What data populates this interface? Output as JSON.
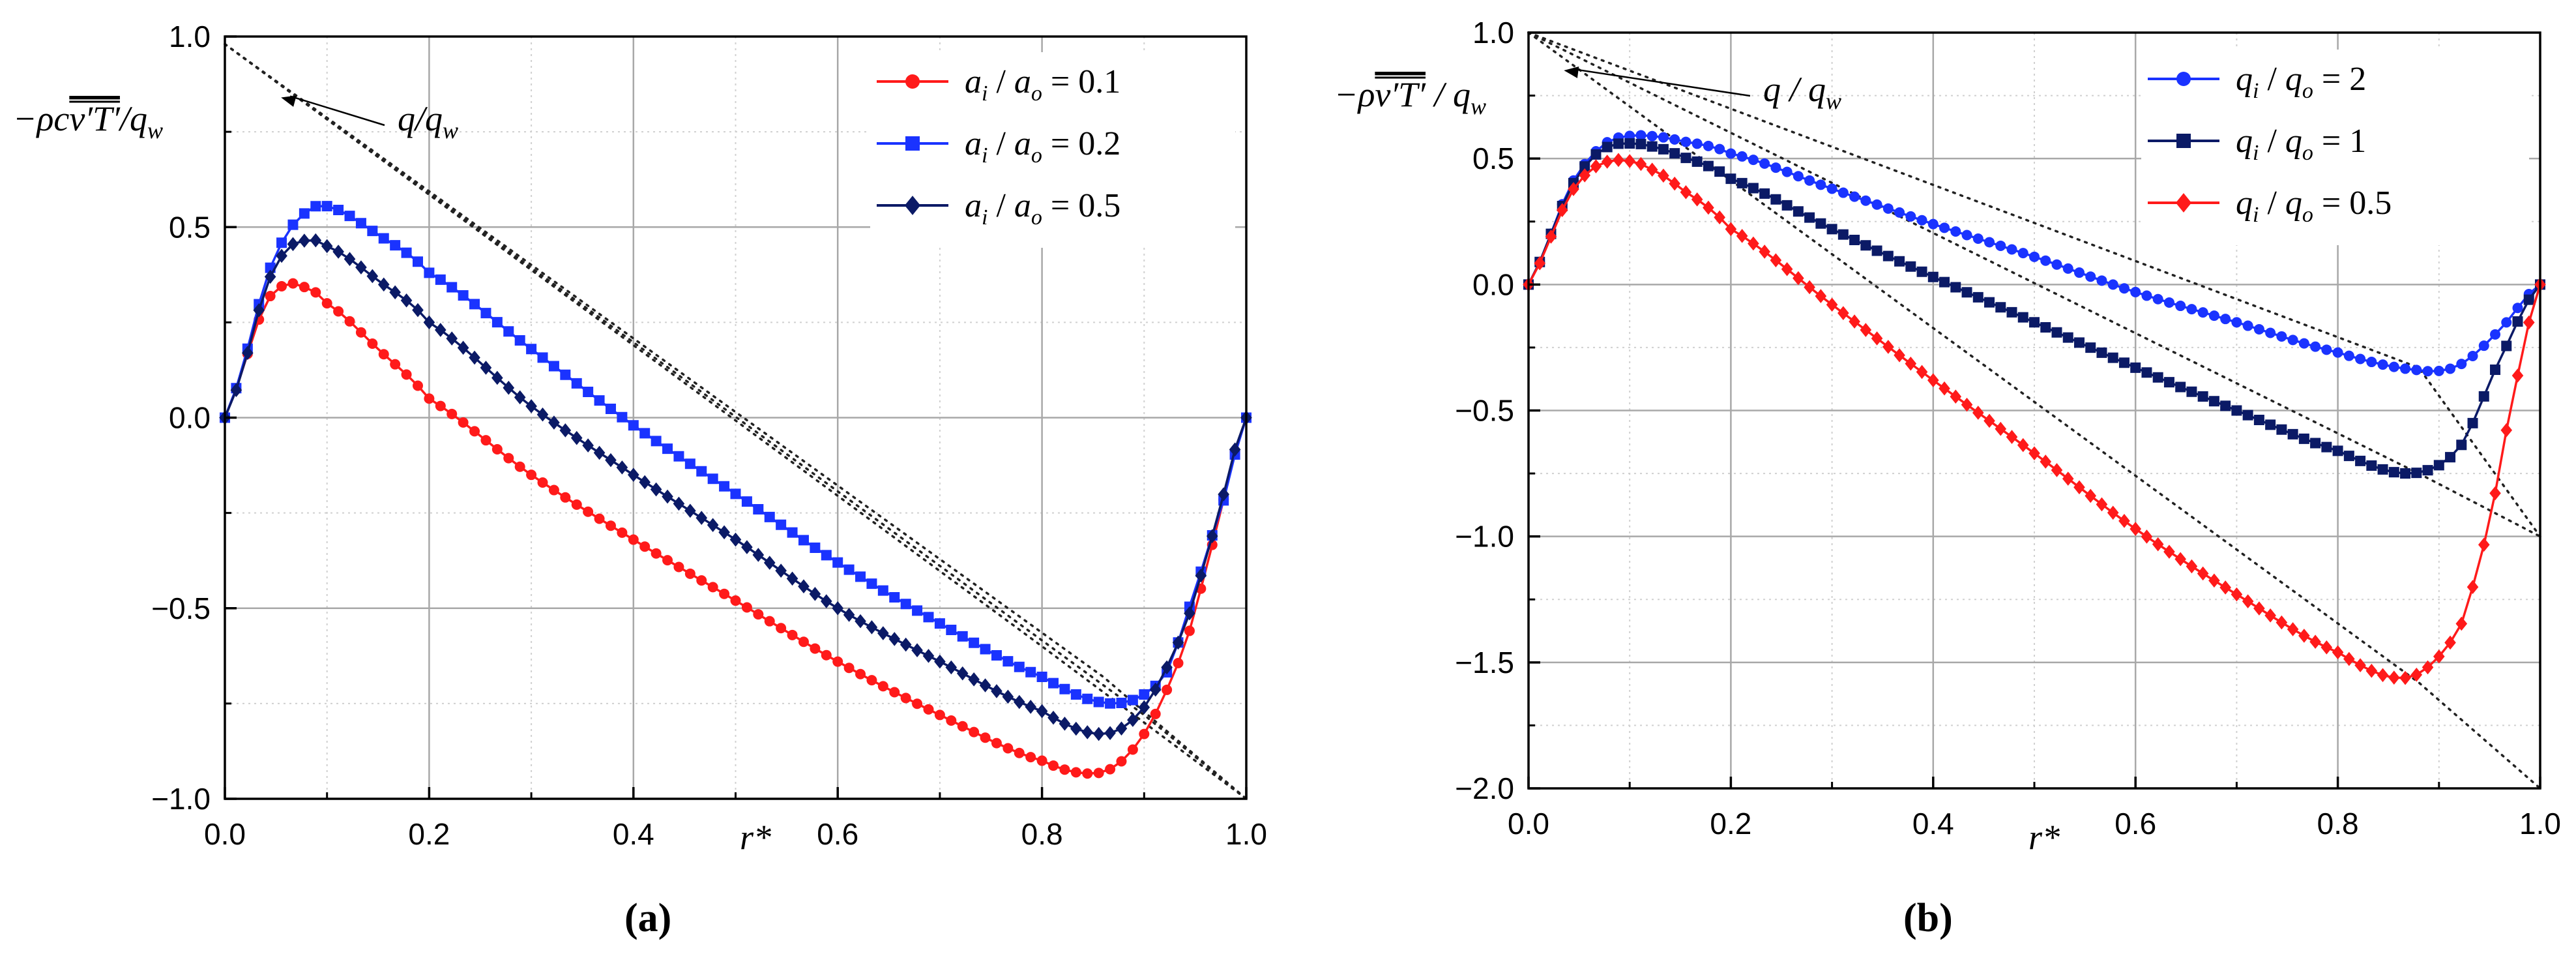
{
  "chart_data": [
    {
      "type": "line",
      "panel_label": "(a)",
      "ylabel": "−ρcv′T′/qw",
      "ylabel_parts": {
        "prefix": "−ρc",
        "overline": "v′T′",
        "suffix": "/q",
        "sub": "w"
      },
      "xlabel": "r*",
      "xlim": [
        0.0,
        1.0
      ],
      "ylim": [
        -1.0,
        1.0
      ],
      "xticks": [
        "0.0",
        "0.2",
        "0.4",
        "0.6",
        "0.8",
        "1.0"
      ],
      "yticks": [
        "−1.0",
        "−0.5",
        "0.0",
        "0.5",
        "1.0"
      ],
      "legend_position": "top-right",
      "annotation": {
        "text": "q/qw",
        "parts": {
          "main": "q/q",
          "sub": "w"
        },
        "arrow_to": [
          0.055,
          0.84
        ]
      },
      "reference_lines": [
        {
          "name": "q/qw (ai/ao=0.1)",
          "x": [
            0.0,
            1.0
          ],
          "y": [
            0.96,
            -1.0
          ],
          "ai_ao": 0.1
        },
        {
          "name": "q/qw (ai/ao=0.2)",
          "ai_ao": 0.2
        },
        {
          "name": "q/qw (ai/ao=0.5)",
          "ai_ao": 0.5
        }
      ],
      "series": [
        {
          "name": "ai / ao = 0.1",
          "label": {
            "a": "a",
            "i": "i",
            "sep": " / ",
            "b": "a",
            "o": "o",
            "value": " = 0.1"
          },
          "color": "#ff1a1a",
          "marker": "circle",
          "x": [
            0.0,
            0.02,
            0.04,
            0.06,
            0.08,
            0.1,
            0.15,
            0.2,
            0.3,
            0.4,
            0.5,
            0.6,
            0.7,
            0.8,
            0.86,
            0.9,
            0.94,
            0.97,
            1.0
          ],
          "y": [
            0.0,
            0.15,
            0.3,
            0.35,
            0.34,
            0.3,
            0.18,
            0.05,
            -0.15,
            -0.32,
            -0.48,
            -0.64,
            -0.78,
            -0.9,
            -0.93,
            -0.83,
            -0.6,
            -0.3,
            0.0
          ]
        },
        {
          "name": "ai / ao = 0.2",
          "label": {
            "a": "a",
            "i": "i",
            "sep": " / ",
            "b": "a",
            "o": "o",
            "value": " = 0.2"
          },
          "color": "#1a33ff",
          "marker": "square",
          "x": [
            0.0,
            0.02,
            0.04,
            0.06,
            0.08,
            0.1,
            0.15,
            0.2,
            0.3,
            0.4,
            0.5,
            0.6,
            0.7,
            0.8,
            0.87,
            0.92,
            0.95,
            0.98,
            1.0
          ],
          "y": [
            0.0,
            0.16,
            0.36,
            0.48,
            0.54,
            0.555,
            0.48,
            0.38,
            0.18,
            -0.02,
            -0.2,
            -0.38,
            -0.54,
            -0.68,
            -0.75,
            -0.68,
            -0.45,
            -0.2,
            0.0
          ]
        },
        {
          "name": "ai / ao = 0.5",
          "label": {
            "a": "a",
            "i": "i",
            "sep": " / ",
            "b": "a",
            "o": "o",
            "value": " = 0.5"
          },
          "color": "#0b1a66",
          "marker": "diamond",
          "x": [
            0.0,
            0.02,
            0.04,
            0.06,
            0.08,
            0.1,
            0.15,
            0.2,
            0.3,
            0.4,
            0.5,
            0.6,
            0.7,
            0.8,
            0.86,
            0.9,
            0.94,
            0.97,
            1.0
          ],
          "y": [
            0.0,
            0.15,
            0.34,
            0.44,
            0.465,
            0.45,
            0.36,
            0.25,
            0.03,
            -0.15,
            -0.32,
            -0.5,
            -0.64,
            -0.77,
            -0.83,
            -0.76,
            -0.55,
            -0.28,
            0.0
          ]
        }
      ]
    },
    {
      "type": "line",
      "panel_label": "(b)",
      "ylabel": "−ρv′T′/qw",
      "ylabel_parts": {
        "prefix": "−ρ",
        "overline": "v′T′",
        "suffix": " / q",
        "sub": "w"
      },
      "xlabel": "r*",
      "xlim": [
        0.0,
        1.0
      ],
      "ylim": [
        -2.0,
        1.0
      ],
      "xticks": [
        "0.0",
        "0.2",
        "0.4",
        "0.6",
        "0.8",
        "1.0"
      ],
      "yticks": [
        "−2.0",
        "−1.5",
        "−1.0",
        "−0.5",
        "0.0",
        "0.5",
        "1.0"
      ],
      "legend_position": "top-right",
      "annotation": {
        "text": "q / qw",
        "parts": {
          "main": "q / q",
          "sub": "w"
        },
        "arrow_to": [
          0.035,
          0.85
        ]
      },
      "reference_lines": [
        {
          "name": "q/qw (qi/qo=2)",
          "qi_qo": 2
        },
        {
          "name": "q/qw (qi/qo=1)",
          "qi_qo": 1
        },
        {
          "name": "q/qw (qi/qo=0.5)",
          "qi_qo": 0.5
        }
      ],
      "series": [
        {
          "name": "qi / qo = 2",
          "label": {
            "a": "q",
            "i": "i",
            "sep": " / ",
            "b": "q",
            "o": "o",
            "value": " = 2"
          },
          "color": "#1a33ff",
          "marker": "circle",
          "x": [
            0.0,
            0.02,
            0.04,
            0.06,
            0.08,
            0.1,
            0.12,
            0.15,
            0.2,
            0.3,
            0.4,
            0.5,
            0.6,
            0.7,
            0.8,
            0.88,
            0.92,
            0.96,
            1.0
          ],
          "y": [
            0.0,
            0.18,
            0.38,
            0.5,
            0.57,
            0.59,
            0.59,
            0.57,
            0.52,
            0.38,
            0.24,
            0.11,
            -0.03,
            -0.15,
            -0.27,
            -0.34,
            -0.32,
            -0.18,
            0.0
          ]
        },
        {
          "name": "qi / qo = 1",
          "label": {
            "a": "q",
            "i": "i",
            "sep": " / ",
            "b": "q",
            "o": "o",
            "value": " = 1"
          },
          "color": "#0b1a66",
          "marker": "square",
          "x": [
            0.0,
            0.02,
            0.04,
            0.06,
            0.08,
            0.1,
            0.12,
            0.15,
            0.2,
            0.3,
            0.4,
            0.5,
            0.6,
            0.7,
            0.8,
            0.87,
            0.92,
            0.96,
            1.0
          ],
          "y": [
            0.0,
            0.18,
            0.37,
            0.49,
            0.55,
            0.56,
            0.55,
            0.51,
            0.42,
            0.22,
            0.03,
            -0.15,
            -0.33,
            -0.5,
            -0.66,
            -0.75,
            -0.65,
            -0.3,
            0.0
          ]
        },
        {
          "name": "qi / qo = 0.5",
          "label": {
            "a": "q",
            "i": "i",
            "sep": " / ",
            "b": "q",
            "o": "o",
            "value": " = 0.5"
          },
          "color": "#ff1a1a",
          "marker": "diamond",
          "x": [
            0.0,
            0.02,
            0.04,
            0.06,
            0.08,
            0.1,
            0.12,
            0.15,
            0.2,
            0.3,
            0.4,
            0.5,
            0.6,
            0.7,
            0.8,
            0.87,
            0.92,
            0.95,
            0.97,
            1.0
          ],
          "y": [
            0.0,
            0.17,
            0.35,
            0.45,
            0.49,
            0.49,
            0.46,
            0.38,
            0.22,
            -0.08,
            -0.38,
            -0.67,
            -0.97,
            -1.23,
            -1.46,
            -1.56,
            -1.37,
            -0.95,
            -0.5,
            0.0
          ]
        }
      ]
    }
  ]
}
